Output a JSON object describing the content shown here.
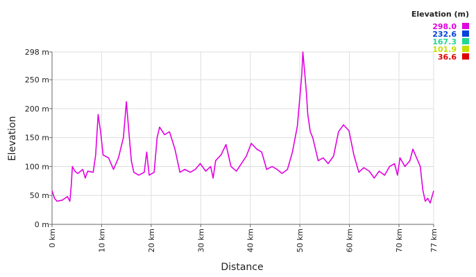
{
  "chart_data": {
    "type": "line",
    "x_label": "Distance",
    "y_label": "Elevation",
    "legend_title": "Elevation (m)",
    "color_scale": [
      {
        "value": 298,
        "label": "298.0",
        "color": "#e000e0"
      },
      {
        "value": 232.6,
        "label": "232.6",
        "color": "#0044dd"
      },
      {
        "value": 167.3,
        "label": "167.3",
        "color": "#22d890"
      },
      {
        "value": 101.9,
        "label": "101.9",
        "color": "#c4e000"
      },
      {
        "value": 36.6,
        "label": "36.6",
        "color": "#e00000"
      }
    ],
    "x": [
      0,
      0.5,
      1,
      2.1,
      3.1,
      3.6,
      3.9,
      4.1,
      4.6,
      5.2,
      6.2,
      6.7,
      7.2,
      8.3,
      8.8,
      9.3,
      9.8,
      10.3,
      11.4,
      12.4,
      13.4,
      14.4,
      15,
      15.5,
      16,
      16.5,
      17.5,
      18.6,
      19.1,
      19.6,
      20.6,
      21.2,
      21.7,
      22.7,
      23.7,
      24.8,
      25.8,
      26.8,
      27.9,
      28.9,
      29.9,
      31,
      32,
      32.5,
      33,
      34.1,
      35.1,
      36.1,
      37.2,
      38.2,
      39.2,
      40.2,
      41.3,
      42.3,
      43.3,
      44.4,
      45.4,
      46.4,
      47.5,
      48.5,
      49.5,
      50,
      50.4,
      50.6,
      50.9,
      51.3,
      51.6,
      52.1,
      52.6,
      53.7,
      54.7,
      55.7,
      56.8,
      57.8,
      58.8,
      59.9,
      60.9,
      61.9,
      62.9,
      64,
      65,
      66,
      67.1,
      68.1,
      69.1,
      69.7,
      70.2,
      71.2,
      72.2,
      72.8,
      73.3,
      74.3,
      74.8,
      75.3,
      75.8,
      76.3,
      77
    ],
    "series": [
      {
        "name": "Elevation",
        "values": [
          58,
          45,
          40,
          42,
          48,
          40,
          70,
          100,
          92,
          88,
          95,
          80,
          92,
          90,
          120,
          190,
          160,
          120,
          115,
          95,
          115,
          150,
          212,
          160,
          110,
          90,
          85,
          90,
          125,
          85,
          90,
          150,
          168,
          155,
          160,
          130,
          90,
          95,
          90,
          95,
          105,
          92,
          100,
          80,
          110,
          120,
          138,
          100,
          92,
          105,
          118,
          140,
          130,
          125,
          95,
          100,
          95,
          88,
          95,
          125,
          170,
          220,
          260,
          298,
          270,
          230,
          190,
          160,
          150,
          110,
          115,
          105,
          118,
          160,
          172,
          162,
          120,
          90,
          98,
          92,
          80,
          92,
          85,
          100,
          105,
          85,
          115,
          100,
          110,
          130,
          120,
          100,
          60,
          40,
          45,
          37,
          58
        ]
      }
    ],
    "xlim": [
      0,
      77
    ],
    "xticks": [
      {
        "value": 0,
        "label": "0 km"
      },
      {
        "value": 10,
        "label": "10 km"
      },
      {
        "value": 20,
        "label": "20 km"
      },
      {
        "value": 30,
        "label": "30 km"
      },
      {
        "value": 40,
        "label": "40 km"
      },
      {
        "value": 50,
        "label": "50 km"
      },
      {
        "value": 60,
        "label": "60 km"
      },
      {
        "value": 70,
        "label": "70 km"
      },
      {
        "value": 77,
        "label": "77 km"
      }
    ],
    "ylim": [
      0,
      298
    ],
    "yticks": [
      {
        "value": 0,
        "label": "0 m"
      },
      {
        "value": 50,
        "label": "50 m"
      },
      {
        "value": 100,
        "label": "100 m"
      },
      {
        "value": 150,
        "label": "150 m"
      },
      {
        "value": 200,
        "label": "200 m"
      },
      {
        "value": 250,
        "label": "250 m"
      },
      {
        "value": 298,
        "label": "298 m"
      }
    ],
    "grid": true
  }
}
